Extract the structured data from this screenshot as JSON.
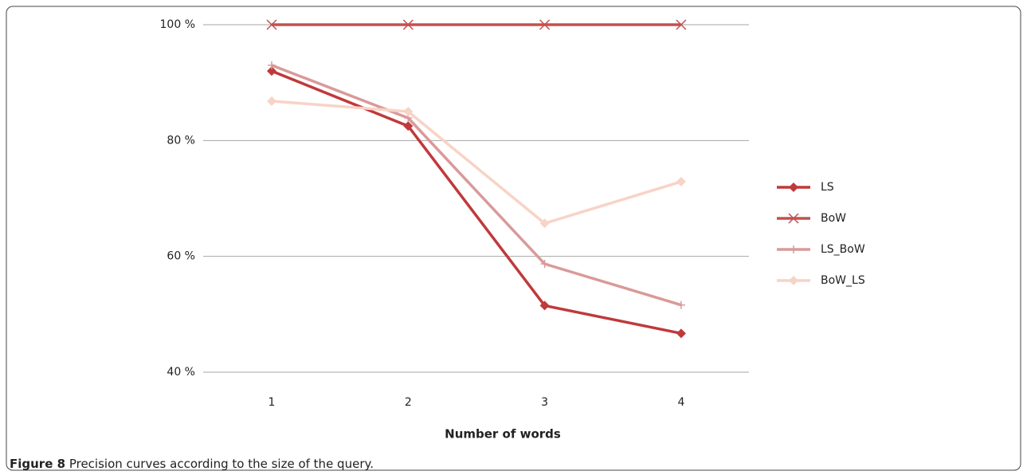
{
  "chart_data": {
    "type": "line",
    "caption_label": "Figure 8",
    "caption": "Precision curves according to the size of the query.",
    "x_label": "Number of words",
    "categories": [
      "1",
      "2",
      "3",
      "4"
    ],
    "ylim": [
      40,
      100
    ],
    "yticks": [
      {
        "value": 40,
        "label": "40 %"
      },
      {
        "value": 60,
        "label": "60 %"
      },
      {
        "value": 80,
        "label": "80 %"
      },
      {
        "value": 100,
        "label": "100 %"
      }
    ],
    "grid": true,
    "legend": "right",
    "series": [
      {
        "name": "LS",
        "color": "#c0393b",
        "marker": "diamond",
        "values": [
          92,
          82.5,
          51.5,
          46.7
        ]
      },
      {
        "name": "BoW",
        "color": "#c4504f",
        "marker": "x",
        "values": [
          100,
          100,
          100,
          100
        ]
      },
      {
        "name": "LS_BoW",
        "color": "#d99a99",
        "marker": "plus",
        "values": [
          93,
          83.9,
          58.7,
          51.6
        ]
      },
      {
        "name": "BoW_LS",
        "color": "#f8d3c6",
        "marker": "diamond",
        "values": [
          86.8,
          85,
          65.7,
          72.9
        ]
      }
    ]
  }
}
